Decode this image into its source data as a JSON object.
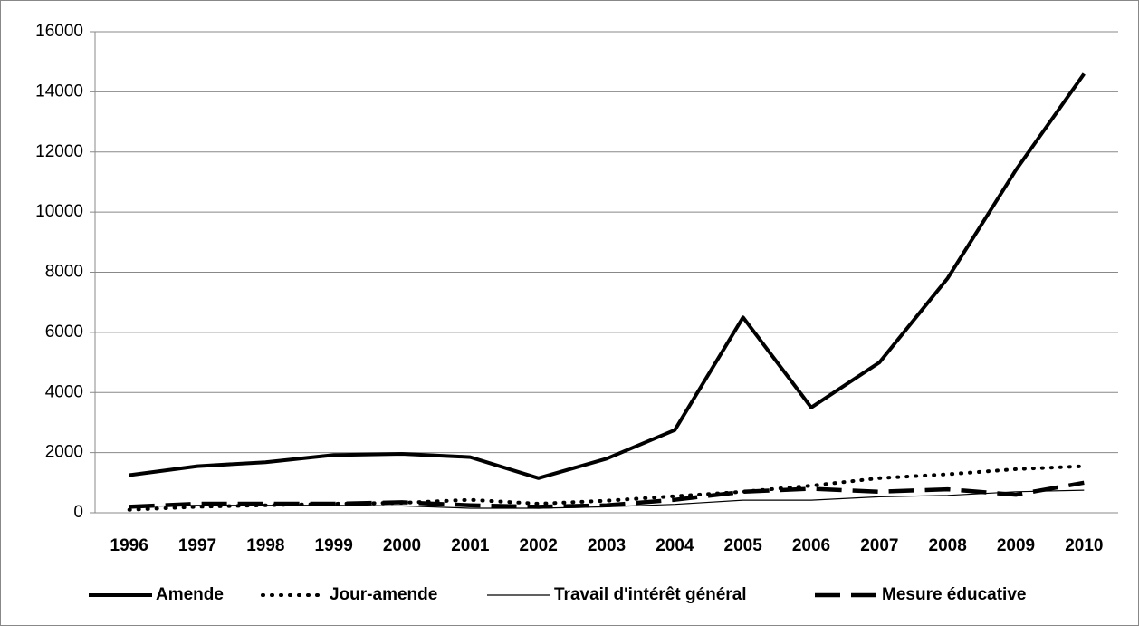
{
  "chart_data": {
    "type": "line",
    "categories": [
      "1996",
      "1997",
      "1998",
      "1999",
      "2000",
      "2001",
      "2002",
      "2003",
      "2004",
      "2005",
      "2006",
      "2007",
      "2008",
      "2009",
      "2010"
    ],
    "series": [
      {
        "name": "Amende",
        "color": "#000000",
        "width": 4,
        "dash": "none",
        "values": [
          1250,
          1550,
          1680,
          1920,
          1960,
          1850,
          1150,
          1800,
          2750,
          6500,
          3500,
          5000,
          7800,
          11400,
          14600
        ]
      },
      {
        "name": "Jour-amende",
        "color": "#000000",
        "width": 4,
        "dash": "1 9",
        "values": [
          100,
          200,
          250,
          300,
          330,
          430,
          300,
          400,
          550,
          700,
          900,
          1150,
          1280,
          1450,
          1550
        ]
      },
      {
        "name": "Travail d'intérêt général",
        "color": "#000000",
        "width": 1.2,
        "dash": "none",
        "values": [
          200,
          250,
          250,
          250,
          230,
          150,
          150,
          200,
          280,
          420,
          420,
          530,
          580,
          700,
          750
        ]
      },
      {
        "name": "Mesure éducative",
        "color": "#000000",
        "width": 4.5,
        "dash": "28 12",
        "values": [
          200,
          300,
          300,
          300,
          350,
          250,
          200,
          250,
          430,
          700,
          800,
          700,
          780,
          600,
          1000
        ]
      }
    ],
    "ylim": [
      0,
      16000
    ],
    "yticks": [
      0,
      2000,
      4000,
      6000,
      8000,
      10000,
      12000,
      14000,
      16000
    ],
    "grid": true,
    "legend": "bottom"
  }
}
